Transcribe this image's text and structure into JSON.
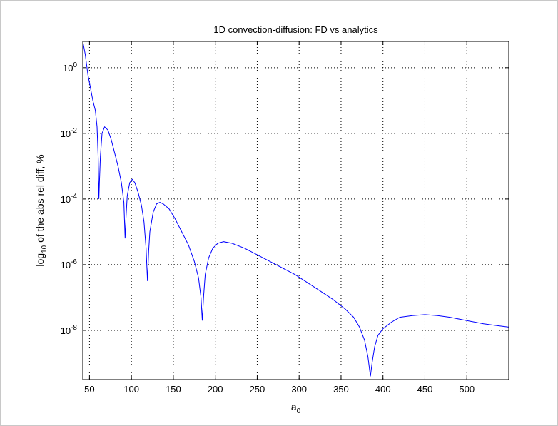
{
  "chart_data": {
    "type": "line",
    "title": "1D convection-diffusion: FD vs analytics",
    "xlabel": "a",
    "xlabel_sub": "0",
    "ylabel_prefix": "log",
    "ylabel_sub": "10",
    "ylabel_suffix": " of the abs rel diff, %",
    "xlim": [
      42,
      550
    ],
    "ylim_log10": [
      -9.5,
      0.8
    ],
    "y_scale": "log",
    "grid": true,
    "grid_style": "dotted",
    "x_ticks": [
      50,
      100,
      150,
      200,
      250,
      300,
      350,
      400,
      450,
      500
    ],
    "y_ticks": [
      {
        "base": "10",
        "exp": "0",
        "log": 0
      },
      {
        "base": "10",
        "exp": "-2",
        "log": -2
      },
      {
        "base": "10",
        "exp": "-4",
        "log": -4
      },
      {
        "base": "10",
        "exp": "-6",
        "log": -6
      },
      {
        "base": "10",
        "exp": "-8",
        "log": -8
      }
    ],
    "line_color": "#0000ff",
    "series": [
      {
        "log10_values": true,
        "points": [
          [
            42,
            0.9
          ],
          [
            45,
            0.4
          ],
          [
            48,
            -0.2
          ],
          [
            51,
            -0.6
          ],
          [
            54,
            -1.0
          ],
          [
            57,
            -1.3
          ],
          [
            59,
            -1.8
          ],
          [
            60.5,
            -2.8
          ],
          [
            61.2,
            -4.0
          ],
          [
            61.8,
            -3.5
          ],
          [
            63,
            -2.7
          ],
          [
            65,
            -2.0
          ],
          [
            68,
            -1.8
          ],
          [
            72,
            -1.9
          ],
          [
            76,
            -2.2
          ],
          [
            80,
            -2.6
          ],
          [
            84,
            -3.0
          ],
          [
            88,
            -3.5
          ],
          [
            91,
            -4.1
          ],
          [
            92.5,
            -5.2
          ],
          [
            93.5,
            -4.6
          ],
          [
            95,
            -3.9
          ],
          [
            98,
            -3.5
          ],
          [
            101,
            -3.4
          ],
          [
            104,
            -3.5
          ],
          [
            108,
            -3.8
          ],
          [
            112,
            -4.2
          ],
          [
            115,
            -4.7
          ],
          [
            117.5,
            -5.5
          ],
          [
            119.2,
            -6.5
          ],
          [
            120.5,
            -5.6
          ],
          [
            122,
            -5.0
          ],
          [
            126,
            -4.4
          ],
          [
            130,
            -4.15
          ],
          [
            134,
            -4.1
          ],
          [
            138,
            -4.15
          ],
          [
            145,
            -4.3
          ],
          [
            152,
            -4.6
          ],
          [
            160,
            -5.0
          ],
          [
            168,
            -5.4
          ],
          [
            175,
            -5.9
          ],
          [
            180,
            -6.4
          ],
          [
            183,
            -7.0
          ],
          [
            184.5,
            -7.7
          ],
          [
            186,
            -7.0
          ],
          [
            188,
            -6.3
          ],
          [
            192,
            -5.8
          ],
          [
            197,
            -5.5
          ],
          [
            203,
            -5.35
          ],
          [
            210,
            -5.3
          ],
          [
            220,
            -5.35
          ],
          [
            235,
            -5.5
          ],
          [
            250,
            -5.7
          ],
          [
            265,
            -5.9
          ],
          [
            280,
            -6.1
          ],
          [
            295,
            -6.3
          ],
          [
            310,
            -6.55
          ],
          [
            325,
            -6.8
          ],
          [
            340,
            -7.05
          ],
          [
            355,
            -7.35
          ],
          [
            365,
            -7.6
          ],
          [
            372,
            -7.9
          ],
          [
            378,
            -8.3
          ],
          [
            382,
            -8.8
          ],
          [
            385,
            -9.4
          ],
          [
            387,
            -9.0
          ],
          [
            390,
            -8.5
          ],
          [
            394,
            -8.15
          ],
          [
            400,
            -7.95
          ],
          [
            410,
            -7.75
          ],
          [
            420,
            -7.6
          ],
          [
            435,
            -7.55
          ],
          [
            450,
            -7.52
          ],
          [
            465,
            -7.55
          ],
          [
            480,
            -7.6
          ],
          [
            500,
            -7.7
          ],
          [
            520,
            -7.8
          ],
          [
            535,
            -7.85
          ],
          [
            550,
            -7.9
          ]
        ]
      }
    ]
  }
}
